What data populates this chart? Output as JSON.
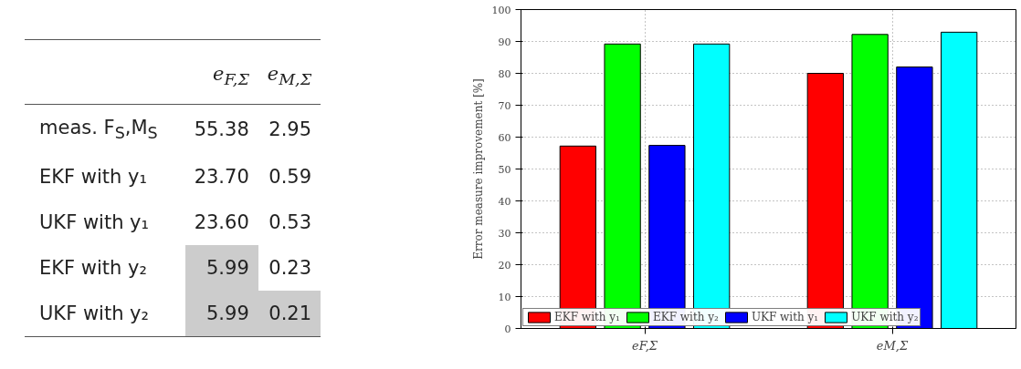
{
  "chart_data": [
    {
      "type": "other",
      "categories": [
        "e$_{F,Σ}$",
        "e$_{M,Σ}$"
      ],
      "y_categories": [
        "meas. F$_{S}$,M$_{S}$",
        "EKF with y₁",
        "UKF with y₁",
        "EKF with y₂",
        "UKF with y₂"
      ],
      "cell_labels": [
        [
          "55.38",
          "2.95"
        ],
        [
          "23.70",
          "0.59"
        ],
        [
          "23.60",
          "0.53"
        ],
        [
          "5.99",
          "0.23"
        ],
        [
          "5.99",
          "0.21"
        ]
      ],
      "colors": [
        [
          null,
          null
        ],
        [
          null,
          null
        ],
        [
          null,
          null
        ],
        [
          "#cccccc",
          null
        ],
        [
          "#cccccc",
          "#cccccc"
        ]
      ]
    },
    {
      "type": "bar",
      "categories": [
        "eF,Σ",
        "eM,Σ"
      ],
      "ylabel": "Error measure improvement [%]",
      "series": [
        {
          "name": "EKF with y₁",
          "color": "#ff0000",
          "values": [
            57.2,
            80.0
          ]
        },
        {
          "name": "EKF with y₂",
          "color": "#00ff00",
          "values": [
            89.2,
            92.2
          ]
        },
        {
          "name": "UKF with y₁",
          "color": "#0000ff",
          "values": [
            57.4,
            82.0
          ]
        },
        {
          "name": "UKF with y₂",
          "color": "#00ffff",
          "values": [
            89.2,
            92.9
          ]
        }
      ],
      "ylim": [
        0,
        100
      ],
      "yticks": [
        0,
        10,
        20,
        30,
        40,
        50,
        60,
        70,
        80,
        90,
        100
      ],
      "grid": true,
      "legend": "bottom left"
    }
  ]
}
